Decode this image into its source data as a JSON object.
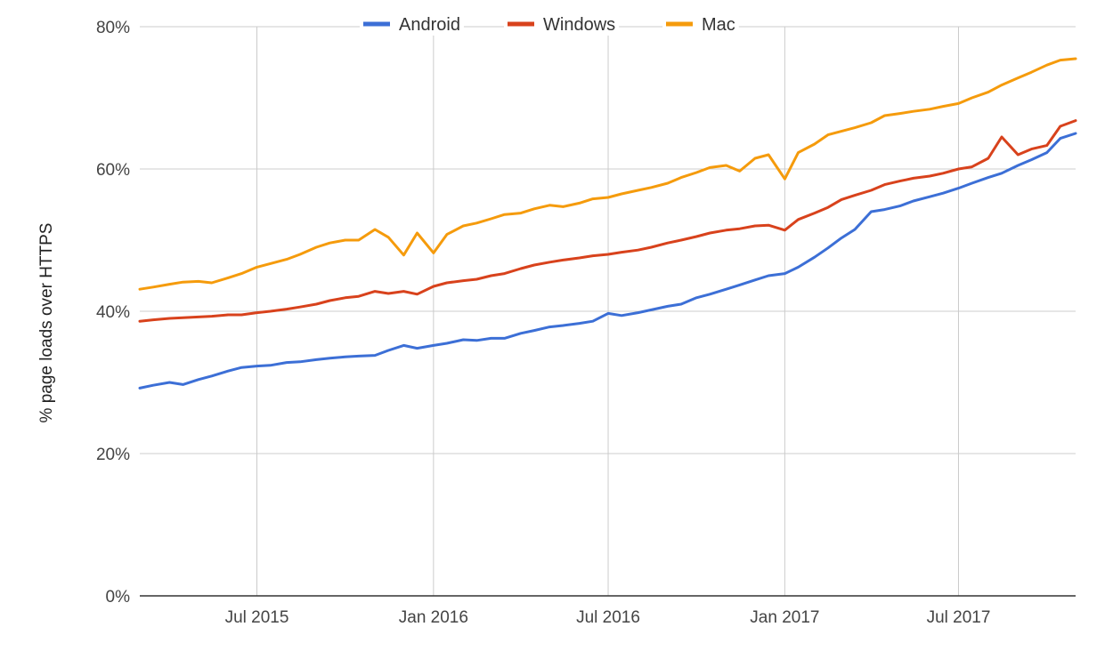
{
  "chart_data": {
    "type": "line",
    "title": "",
    "xlabel": "",
    "ylabel": "% page loads over HTTPS",
    "x_tick_labels": [
      "Jul 2015",
      "Jan 2016",
      "Jul 2016",
      "Jan 2017",
      "Jul 2017"
    ],
    "y_tick_labels": [
      "0%",
      "20%",
      "40%",
      "60%",
      "80%"
    ],
    "ylim": [
      0,
      80
    ],
    "xlim": [
      "2015-03-01",
      "2017-10-31"
    ],
    "grid": true,
    "legend_position": "top-center",
    "series": [
      {
        "name": "Android",
        "color": "#3c6fd6",
        "points": [
          [
            "2015-03-01",
            29.2
          ],
          [
            "2015-03-15",
            29.6
          ],
          [
            "2015-04-01",
            30.0
          ],
          [
            "2015-04-15",
            29.7
          ],
          [
            "2015-05-01",
            30.4
          ],
          [
            "2015-05-15",
            30.9
          ],
          [
            "2015-06-01",
            31.6
          ],
          [
            "2015-06-15",
            32.1
          ],
          [
            "2015-07-01",
            32.3
          ],
          [
            "2015-07-15",
            32.4
          ],
          [
            "2015-08-01",
            32.8
          ],
          [
            "2015-08-15",
            32.9
          ],
          [
            "2015-09-01",
            33.2
          ],
          [
            "2015-09-15",
            33.4
          ],
          [
            "2015-10-01",
            33.6
          ],
          [
            "2015-10-15",
            33.7
          ],
          [
            "2015-11-01",
            33.8
          ],
          [
            "2015-11-15",
            34.5
          ],
          [
            "2015-12-01",
            35.2
          ],
          [
            "2015-12-15",
            34.8
          ],
          [
            "2016-01-01",
            35.2
          ],
          [
            "2016-01-15",
            35.5
          ],
          [
            "2016-02-01",
            36.0
          ],
          [
            "2016-02-15",
            35.9
          ],
          [
            "2016-03-01",
            36.2
          ],
          [
            "2016-03-15",
            36.2
          ],
          [
            "2016-04-01",
            36.9
          ],
          [
            "2016-04-15",
            37.3
          ],
          [
            "2016-05-01",
            37.8
          ],
          [
            "2016-05-15",
            38.0
          ],
          [
            "2016-06-01",
            38.3
          ],
          [
            "2016-06-15",
            38.6
          ],
          [
            "2016-07-01",
            39.7
          ],
          [
            "2016-07-15",
            39.4
          ],
          [
            "2016-08-01",
            39.8
          ],
          [
            "2016-08-15",
            40.2
          ],
          [
            "2016-09-01",
            40.7
          ],
          [
            "2016-09-15",
            41.0
          ],
          [
            "2016-10-01",
            41.9
          ],
          [
            "2016-10-15",
            42.4
          ],
          [
            "2016-11-01",
            43.1
          ],
          [
            "2016-11-15",
            43.7
          ],
          [
            "2016-12-01",
            44.4
          ],
          [
            "2016-12-15",
            45.0
          ],
          [
            "2017-01-01",
            45.3
          ],
          [
            "2017-01-15",
            46.2
          ],
          [
            "2017-02-01",
            47.6
          ],
          [
            "2017-02-15",
            48.9
          ],
          [
            "2017-03-01",
            50.3
          ],
          [
            "2017-03-15",
            51.5
          ],
          [
            "2017-04-01",
            54.0
          ],
          [
            "2017-04-15",
            54.3
          ],
          [
            "2017-05-01",
            54.8
          ],
          [
            "2017-05-15",
            55.5
          ],
          [
            "2017-06-01",
            56.1
          ],
          [
            "2017-06-15",
            56.6
          ],
          [
            "2017-07-01",
            57.3
          ],
          [
            "2017-07-15",
            58.0
          ],
          [
            "2017-08-01",
            58.8
          ],
          [
            "2017-08-15",
            59.4
          ],
          [
            "2017-09-01",
            60.5
          ],
          [
            "2017-09-15",
            61.3
          ],
          [
            "2017-10-01",
            62.3
          ],
          [
            "2017-10-15",
            64.3
          ],
          [
            "2017-10-31",
            65.0
          ]
        ]
      },
      {
        "name": "Windows",
        "color": "#d8421c",
        "points": [
          [
            "2015-03-01",
            38.6
          ],
          [
            "2015-03-15",
            38.8
          ],
          [
            "2015-04-01",
            39.0
          ],
          [
            "2015-04-15",
            39.1
          ],
          [
            "2015-05-01",
            39.2
          ],
          [
            "2015-05-15",
            39.3
          ],
          [
            "2015-06-01",
            39.5
          ],
          [
            "2015-06-15",
            39.5
          ],
          [
            "2015-07-01",
            39.8
          ],
          [
            "2015-07-15",
            40.0
          ],
          [
            "2015-08-01",
            40.3
          ],
          [
            "2015-08-15",
            40.6
          ],
          [
            "2015-09-01",
            41.0
          ],
          [
            "2015-09-15",
            41.5
          ],
          [
            "2015-10-01",
            41.9
          ],
          [
            "2015-10-15",
            42.1
          ],
          [
            "2015-11-01",
            42.8
          ],
          [
            "2015-11-15",
            42.5
          ],
          [
            "2015-12-01",
            42.8
          ],
          [
            "2015-12-15",
            42.4
          ],
          [
            "2016-01-01",
            43.5
          ],
          [
            "2016-01-15",
            44.0
          ],
          [
            "2016-02-01",
            44.3
          ],
          [
            "2016-02-15",
            44.5
          ],
          [
            "2016-03-01",
            45.0
          ],
          [
            "2016-03-15",
            45.3
          ],
          [
            "2016-04-01",
            46.0
          ],
          [
            "2016-04-15",
            46.5
          ],
          [
            "2016-05-01",
            46.9
          ],
          [
            "2016-05-15",
            47.2
          ],
          [
            "2016-06-01",
            47.5
          ],
          [
            "2016-06-15",
            47.8
          ],
          [
            "2016-07-01",
            48.0
          ],
          [
            "2016-07-15",
            48.3
          ],
          [
            "2016-08-01",
            48.6
          ],
          [
            "2016-08-15",
            49.0
          ],
          [
            "2016-09-01",
            49.6
          ],
          [
            "2016-09-15",
            50.0
          ],
          [
            "2016-10-01",
            50.5
          ],
          [
            "2016-10-15",
            51.0
          ],
          [
            "2016-11-01",
            51.4
          ],
          [
            "2016-11-15",
            51.6
          ],
          [
            "2016-12-01",
            52.0
          ],
          [
            "2016-12-15",
            52.1
          ],
          [
            "2017-01-01",
            51.4
          ],
          [
            "2017-01-15",
            52.9
          ],
          [
            "2017-02-01",
            53.8
          ],
          [
            "2017-02-15",
            54.6
          ],
          [
            "2017-03-01",
            55.7
          ],
          [
            "2017-03-15",
            56.3
          ],
          [
            "2017-04-01",
            57.0
          ],
          [
            "2017-04-15",
            57.8
          ],
          [
            "2017-05-01",
            58.3
          ],
          [
            "2017-05-15",
            58.7
          ],
          [
            "2017-06-01",
            59.0
          ],
          [
            "2017-06-15",
            59.4
          ],
          [
            "2017-07-01",
            60.0
          ],
          [
            "2017-07-15",
            60.3
          ],
          [
            "2017-08-01",
            61.5
          ],
          [
            "2017-08-15",
            64.5
          ],
          [
            "2017-09-01",
            62.0
          ],
          [
            "2017-09-15",
            62.8
          ],
          [
            "2017-10-01",
            63.3
          ],
          [
            "2017-10-15",
            66.0
          ],
          [
            "2017-10-31",
            66.8
          ]
        ]
      },
      {
        "name": "Mac",
        "color": "#f59b0c",
        "points": [
          [
            "2015-03-01",
            43.1
          ],
          [
            "2015-03-15",
            43.4
          ],
          [
            "2015-04-01",
            43.8
          ],
          [
            "2015-04-15",
            44.1
          ],
          [
            "2015-05-01",
            44.2
          ],
          [
            "2015-05-15",
            44.0
          ],
          [
            "2015-06-01",
            44.7
          ],
          [
            "2015-06-15",
            45.3
          ],
          [
            "2015-07-01",
            46.2
          ],
          [
            "2015-07-15",
            46.7
          ],
          [
            "2015-08-01",
            47.3
          ],
          [
            "2015-08-15",
            48.0
          ],
          [
            "2015-09-01",
            49.0
          ],
          [
            "2015-09-15",
            49.6
          ],
          [
            "2015-10-01",
            50.0
          ],
          [
            "2015-10-15",
            50.0
          ],
          [
            "2015-11-01",
            51.5
          ],
          [
            "2015-11-15",
            50.4
          ],
          [
            "2015-12-01",
            47.9
          ],
          [
            "2015-12-15",
            51.0
          ],
          [
            "2016-01-01",
            48.2
          ],
          [
            "2016-01-15",
            50.8
          ],
          [
            "2016-02-01",
            52.0
          ],
          [
            "2016-02-15",
            52.4
          ],
          [
            "2016-03-01",
            53.0
          ],
          [
            "2016-03-15",
            53.6
          ],
          [
            "2016-04-01",
            53.8
          ],
          [
            "2016-04-15",
            54.4
          ],
          [
            "2016-05-01",
            54.9
          ],
          [
            "2016-05-15",
            54.7
          ],
          [
            "2016-06-01",
            55.2
          ],
          [
            "2016-06-15",
            55.8
          ],
          [
            "2016-07-01",
            56.0
          ],
          [
            "2016-07-15",
            56.5
          ],
          [
            "2016-08-01",
            57.0
          ],
          [
            "2016-08-15",
            57.4
          ],
          [
            "2016-09-01",
            58.0
          ],
          [
            "2016-09-15",
            58.8
          ],
          [
            "2016-10-01",
            59.5
          ],
          [
            "2016-10-15",
            60.2
          ],
          [
            "2016-11-01",
            60.5
          ],
          [
            "2016-11-15",
            59.7
          ],
          [
            "2016-12-01",
            61.5
          ],
          [
            "2016-12-15",
            62.0
          ],
          [
            "2017-01-01",
            58.6
          ],
          [
            "2017-01-15",
            62.3
          ],
          [
            "2017-02-01",
            63.5
          ],
          [
            "2017-02-15",
            64.8
          ],
          [
            "2017-03-01",
            65.3
          ],
          [
            "2017-03-15",
            65.8
          ],
          [
            "2017-04-01",
            66.5
          ],
          [
            "2017-04-15",
            67.5
          ],
          [
            "2017-05-01",
            67.8
          ],
          [
            "2017-05-15",
            68.1
          ],
          [
            "2017-06-01",
            68.4
          ],
          [
            "2017-06-15",
            68.8
          ],
          [
            "2017-07-01",
            69.2
          ],
          [
            "2017-07-15",
            70.0
          ],
          [
            "2017-08-01",
            70.8
          ],
          [
            "2017-08-15",
            71.8
          ],
          [
            "2017-09-01",
            72.8
          ],
          [
            "2017-09-15",
            73.6
          ],
          [
            "2017-10-01",
            74.6
          ],
          [
            "2017-10-15",
            75.3
          ],
          [
            "2017-10-31",
            75.5
          ]
        ]
      }
    ]
  }
}
